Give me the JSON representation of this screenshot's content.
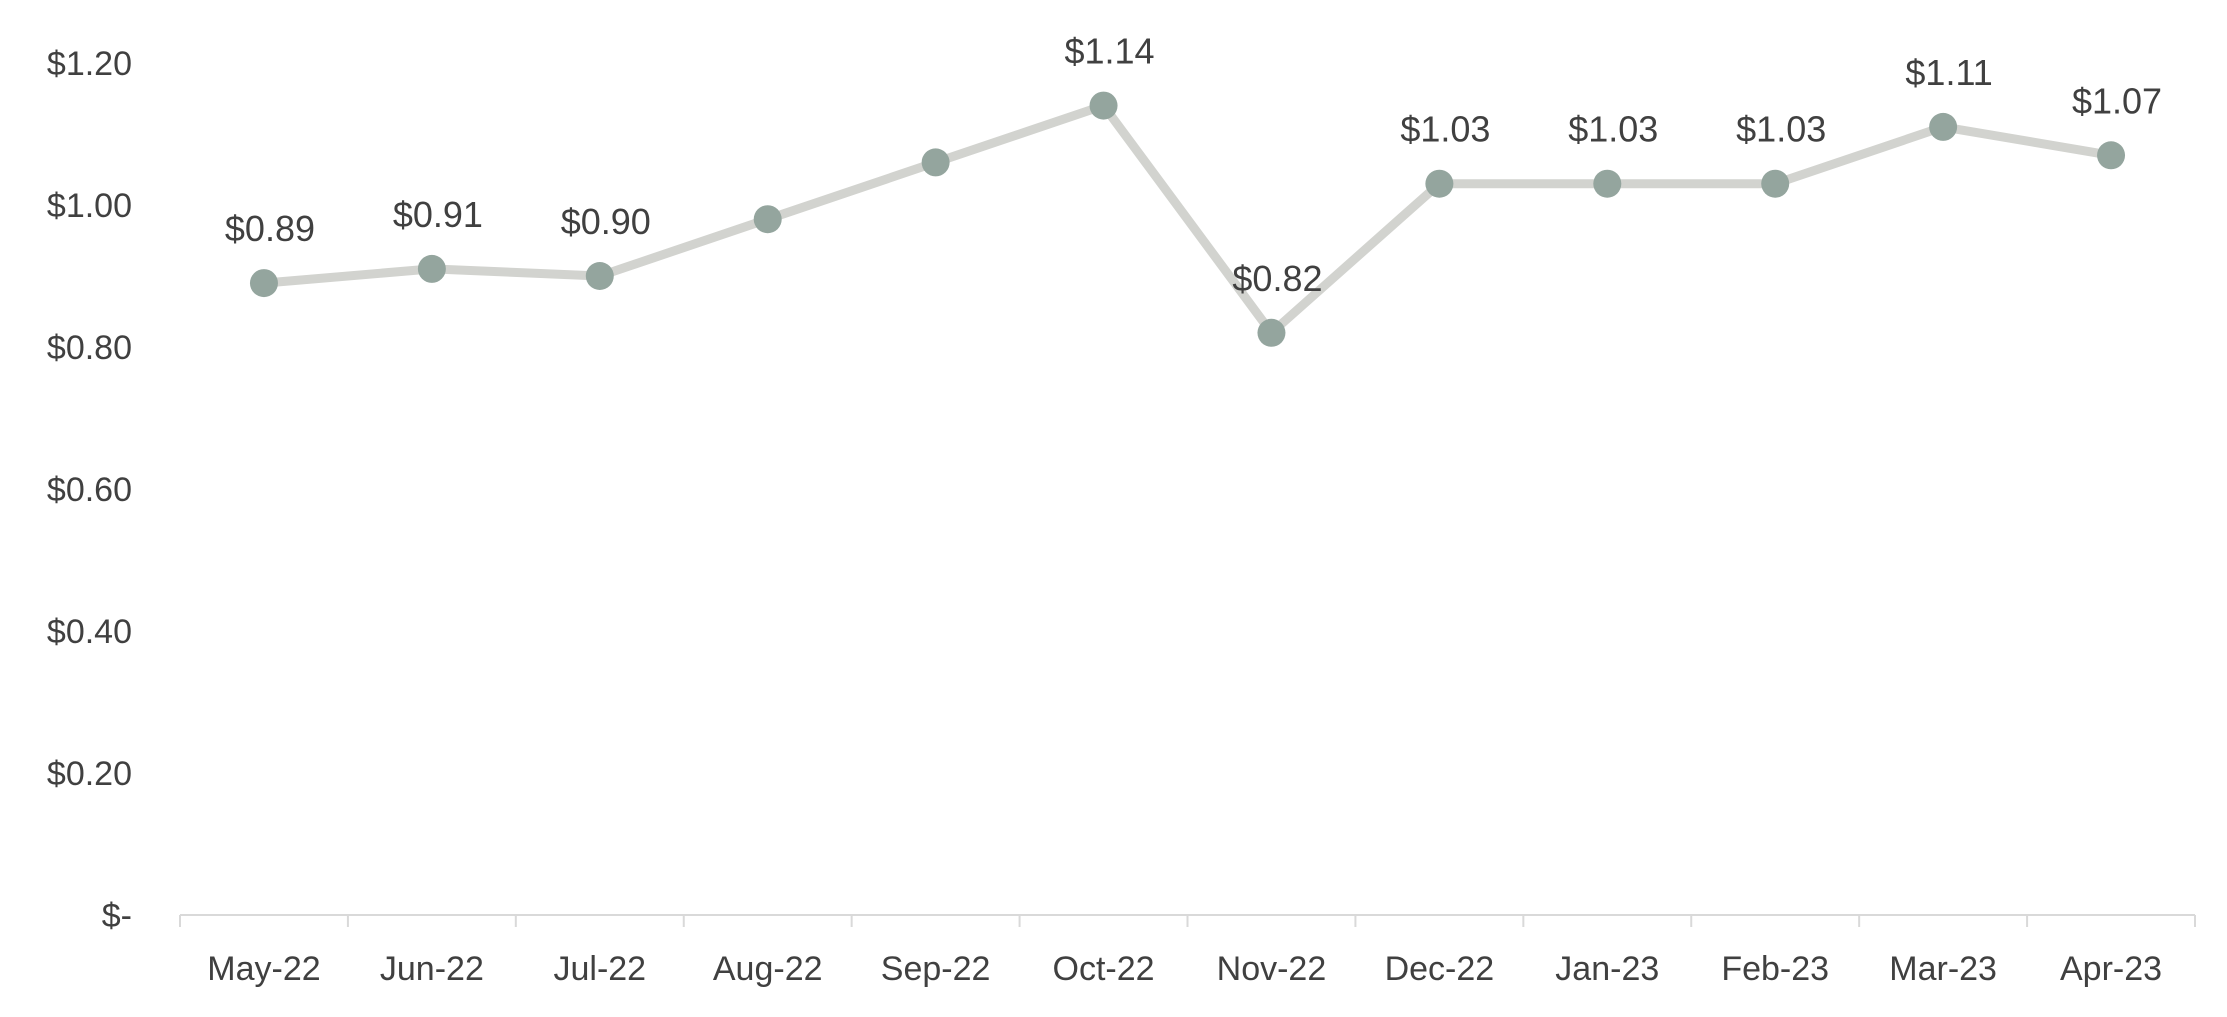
{
  "chart_data": {
    "type": "line",
    "title": "",
    "xlabel": "",
    "ylabel": "",
    "categories": [
      "May-22",
      "Jun-22",
      "Jul-22",
      "Aug-22",
      "Sep-22",
      "Oct-22",
      "Nov-22",
      "Dec-22",
      "Jan-23",
      "Feb-23",
      "Mar-23",
      "Apr-23"
    ],
    "series": [
      {
        "values": [
          0.89,
          0.91,
          0.9,
          0.98,
          1.06,
          1.14,
          0.82,
          1.03,
          1.03,
          1.03,
          1.11,
          1.07
        ],
        "data_labels": [
          "$0.89",
          "$0.91",
          "$0.90",
          "",
          "",
          "$1.14",
          "$0.82",
          "$1.03",
          "$1.03",
          "$1.03",
          "$1.11",
          "$1.07"
        ],
        "line_color": "#d2d3cf",
        "marker_color": "#94a59e"
      }
    ],
    "ylim": [
      0,
      1.2
    ],
    "yticks": [
      0,
      0.2,
      0.4,
      0.6,
      0.8,
      1.0,
      1.2
    ],
    "ytick_labels": [
      "$-",
      "$0.20",
      "$0.40",
      "$0.60",
      "$0.80",
      "$1.00",
      "$1.20"
    ],
    "grid": false,
    "legend": "none"
  }
}
